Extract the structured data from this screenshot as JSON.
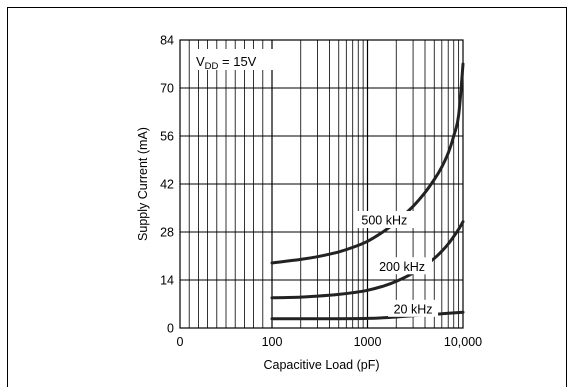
{
  "chart_data": {
    "type": "line",
    "xlabel": "Capacitive Load (pF)",
    "ylabel": "Supply Current (mA)",
    "x_tick_labels": [
      "0",
      "100",
      "1000",
      "10,000"
    ],
    "x_scale": "log (from 100 pF)",
    "x_ticks": [
      100,
      1000,
      10000
    ],
    "ylim": [
      0,
      84
    ],
    "y_ticks": [
      0,
      14,
      28,
      42,
      56,
      70,
      84
    ],
    "grid": true,
    "annotation": {
      "prefix": "V",
      "sub": "DD",
      "suffix": " = 15V"
    },
    "series": [
      {
        "name": "500 kHz",
        "color": "#222222",
        "x": [
          100,
          200,
          300,
          500,
          700,
          1000,
          1500,
          2000,
          3000,
          4000,
          5000,
          6000,
          7000,
          8000,
          9000,
          10000
        ],
        "y": [
          19,
          20,
          20.8,
          22.2,
          23.5,
          25.3,
          28.3,
          31,
          35.5,
          39.5,
          43.3,
          47,
          51,
          56,
          62,
          77
        ]
      },
      {
        "name": "200 kHz",
        "color": "#222222",
        "x": [
          100,
          200,
          300,
          500,
          700,
          1000,
          1500,
          2000,
          3000,
          4000,
          5000,
          6000,
          7000,
          8000,
          9000,
          10000
        ],
        "y": [
          8.8,
          9,
          9.3,
          9.8,
          10.3,
          11,
          12.3,
          13.6,
          16,
          18.2,
          20.3,
          22.4,
          24.5,
          26.7,
          28.8,
          31
        ]
      },
      {
        "name": "20 kHz",
        "color": "#222222",
        "x": [
          100,
          300,
          500,
          1000,
          2000,
          3000,
          5000,
          7000,
          10000
        ],
        "y": [
          2.7,
          2.7,
          2.7,
          2.8,
          3.2,
          3.6,
          4.0,
          4.3,
          4.6
        ]
      }
    ]
  }
}
